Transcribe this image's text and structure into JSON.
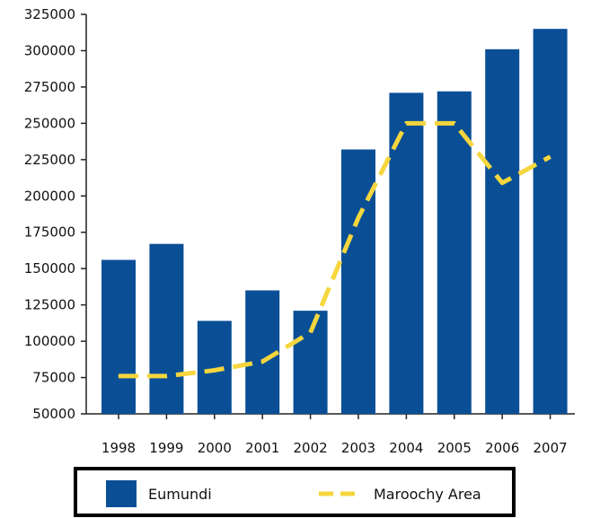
{
  "chart_data": {
    "type": "bar",
    "categories": [
      "1998",
      "1999",
      "2000",
      "2001",
      "2002",
      "2003",
      "2004",
      "2005",
      "2006",
      "2007"
    ],
    "series": [
      {
        "name": "Eumundi",
        "type": "bar",
        "color": "#0a4f96",
        "values": [
          156000,
          167000,
          114000,
          135000,
          121000,
          232000,
          271000,
          272000,
          301000,
          315000
        ]
      },
      {
        "name": "Maroochy Area",
        "type": "line",
        "style": "dashed",
        "color": "#f5d63d",
        "values": [
          76000,
          76000,
          80000,
          86000,
          106000,
          185000,
          250000,
          250000,
          209000,
          227000
        ]
      }
    ],
    "ylim": [
      50000,
      325000
    ],
    "yticks": [
      "50000",
      "75000",
      "100000",
      "125000",
      "150000",
      "175000",
      "200000",
      "225000",
      "250000",
      "275000",
      "300000",
      "325000"
    ],
    "grid": false,
    "legend_position": "bottom"
  }
}
